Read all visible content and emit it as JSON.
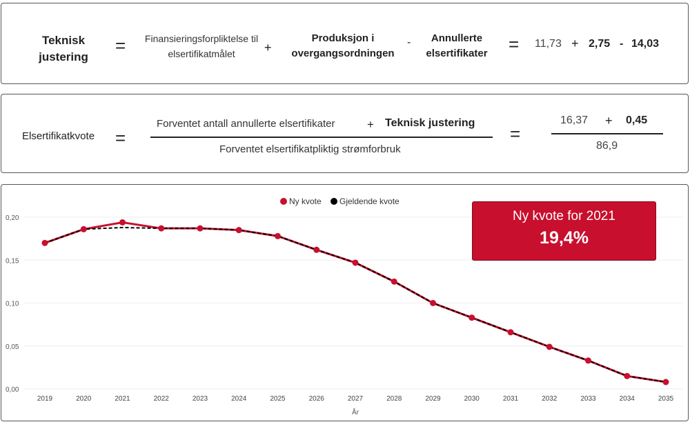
{
  "formula1": {
    "lhs": "Teknisk justering",
    "eq": "=",
    "term1": "Finansieringsforpliktelse til elsertifikatmålet",
    "op1": "+",
    "term2": "Produksjon i overgangsordningen",
    "op2": "-",
    "term3": "Annullerte elsertifikater",
    "eq2": "=",
    "v1": "11,73",
    "vop1": "+",
    "v2": "2,75",
    "vop2": "-",
    "v3": "14,03"
  },
  "formula2": {
    "lhs": "Elsertifikatkvote",
    "eq": "=",
    "num1": "Forventet antall annullerte elsertifikater",
    "op": "+",
    "num2": "Teknisk justering",
    "den": "Forventet elsertifikatpliktig strømforbruk",
    "eq2": "=",
    "v1": "16,37",
    "vop": "+",
    "v2": "0,45",
    "vden": "86,9"
  },
  "kpi": {
    "label": "Ny kvote for 2021",
    "value": "19,4%"
  },
  "colors": {
    "ny": "#c8102e",
    "gjeldende": "#000000"
  },
  "chart_data": {
    "type": "line",
    "xlabel": "År",
    "ylabel": "",
    "ylim": [
      0,
      0.2
    ],
    "grid": true,
    "legend": "top-center",
    "yticks": [
      "0,00",
      "0,05",
      "0,10",
      "0,15",
      "0,20"
    ],
    "x": [
      "2019",
      "2020",
      "2021",
      "2022",
      "2023",
      "2024",
      "2025",
      "2026",
      "2027",
      "2028",
      "2029",
      "2030",
      "2031",
      "2032",
      "2033",
      "2034",
      "2035"
    ],
    "series": [
      {
        "name": "Ny kvote",
        "values": [
          0.17,
          0.186,
          0.194,
          0.187,
          0.187,
          0.185,
          0.178,
          0.162,
          0.147,
          0.125,
          0.1,
          0.083,
          0.066,
          0.049,
          0.033,
          0.015,
          0.008
        ]
      },
      {
        "name": "Gjeldende kvote",
        "values": [
          0.17,
          0.186,
          0.188,
          0.187,
          0.187,
          0.185,
          0.178,
          0.162,
          0.147,
          0.125,
          0.1,
          0.083,
          0.066,
          0.049,
          0.033,
          0.015,
          0.008
        ]
      }
    ]
  }
}
